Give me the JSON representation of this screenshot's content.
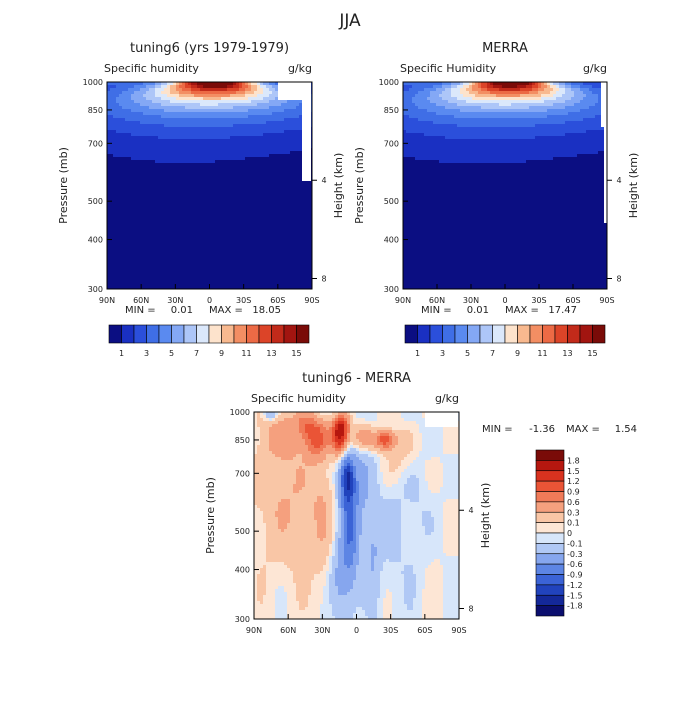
{
  "figure": {
    "title": "JJA"
  },
  "chart_data": [
    {
      "type": "heatmap",
      "subtype": "filled-contour",
      "title": "tuning6 (yrs 1979-1979)",
      "variable": "Specific humidity",
      "units": "g/kg",
      "xlabel": "",
      "ylabel": "Pressure (mb)",
      "y2label": "Height (km)",
      "x_ticks": [
        "90N",
        "60N",
        "30N",
        "0",
        "30S",
        "60S",
        "90S"
      ],
      "y_ticks": [
        "300",
        "400",
        "500",
        "700",
        "850",
        "1000"
      ],
      "y2_ticks": [
        "8",
        "4"
      ],
      "xlim": [
        90,
        -90
      ],
      "ylim": [
        1000,
        300
      ],
      "y_scale": "log",
      "min_label": "MIN =",
      "min": "0.01",
      "max_label": "MAX =",
      "max": "18.05",
      "colorbar_orientation": "horizontal",
      "colorbar_labels": [
        "1",
        "3",
        "5",
        "7",
        "9",
        "11",
        "13",
        "15"
      ],
      "colorbar_colors": [
        "#0b0e82",
        "#1a30c2",
        "#2b4fdb",
        "#3f6ee6",
        "#5a8af0",
        "#84a8f5",
        "#adc6f8",
        "#dbe8fb",
        "#fde3cc",
        "#f8b98f",
        "#f38e63",
        "#ec6a45",
        "#dc4428",
        "#c22a1a",
        "#a21510",
        "#7a0b08"
      ],
      "shape": {
        "peak_lat": -5,
        "peak_value": 18.05,
        "lat_width": 30,
        "lat_spread_per_p": 0.55,
        "p_scale": 115,
        "high_north": 92,
        "terrain": [
          {
            "lat_from": -61,
            "lat_to": -90,
            "p": 908
          },
          {
            "lat_from": -80,
            "lat_to": -90,
            "p": 560
          }
        ]
      }
    },
    {
      "type": "heatmap",
      "subtype": "filled-contour",
      "title": "MERRA",
      "variable": "Specific Humidity",
      "units": "g/kg",
      "xlabel": "",
      "ylabel": "Pressure (mb)",
      "y2label": "Height (km)",
      "x_ticks": [
        "90N",
        "60N",
        "30N",
        "0",
        "30S",
        "60S",
        "90S"
      ],
      "y_ticks": [
        "300",
        "400",
        "500",
        "700",
        "850",
        "1000"
      ],
      "y2_ticks": [
        "8",
        "4"
      ],
      "xlim": [
        90,
        -90
      ],
      "ylim": [
        1000,
        300
      ],
      "y_scale": "log",
      "min_label": "MIN =",
      "min": "0.01",
      "max_label": "MAX =",
      "max": "17.47",
      "colorbar_orientation": "horizontal",
      "colorbar_labels": [
        "1",
        "3",
        "5",
        "7",
        "9",
        "11",
        "13",
        "15"
      ],
      "colorbar_colors": [
        "#0b0e82",
        "#1a30c2",
        "#2b4fdb",
        "#3f6ee6",
        "#5a8af0",
        "#84a8f5",
        "#adc6f8",
        "#dbe8fb",
        "#fde3cc",
        "#f8b98f",
        "#f38e63",
        "#ec6a45",
        "#dc4428",
        "#c22a1a",
        "#a21510",
        "#7a0b08"
      ],
      "shape": {
        "peak_lat": -5,
        "peak_value": 17.47,
        "lat_width": 30,
        "lat_spread_per_p": 0.55,
        "p_scale": 118,
        "high_north": 95,
        "terrain": [
          {
            "lat_from": -84,
            "lat_to": -90,
            "p": 770
          },
          {
            "lat_from": -88,
            "lat_to": -90,
            "p": 440
          }
        ]
      }
    },
    {
      "type": "heatmap",
      "subtype": "filled-contour-difference",
      "title": "tuning6 - MERRA",
      "variable": "Specific humidity",
      "units": "g/kg",
      "xlabel": "",
      "ylabel": "Pressure (mb)",
      "y2label": "Height (km)",
      "x_ticks": [
        "90N",
        "60N",
        "30N",
        "0",
        "30S",
        "60S",
        "90S"
      ],
      "y_ticks": [
        "300",
        "400",
        "500",
        "700",
        "850",
        "1000"
      ],
      "y2_ticks": [
        "8",
        "4"
      ],
      "xlim": [
        90,
        -90
      ],
      "ylim": [
        1000,
        300
      ],
      "y_scale": "log",
      "min_label": "MIN =",
      "min": "-1.36",
      "max_label": "MAX =",
      "max": "1.54",
      "colorbar_orientation": "vertical",
      "colorbar_labels": [
        "1.8",
        "1.5",
        "1.2",
        "0.9",
        "0.6",
        "0.3",
        "0.1",
        "0",
        "-0.1",
        "-0.3",
        "-0.6",
        "-0.9",
        "-1.2",
        "-1.5",
        "-1.8"
      ],
      "colorbar_colors": [
        "#7a0b08",
        "#b5170f",
        "#d8321f",
        "#ea5436",
        "#f07a58",
        "#f5a07e",
        "#f9c6a6",
        "#fde6d5",
        "#d7e6fa",
        "#b0c8f5",
        "#86a6ee",
        "#5d85e4",
        "#3b63d6",
        "#2143bd",
        "#142899",
        "#0b0e6e"
      ],
      "bands": [
        0.1,
        0.3,
        0.6,
        0.9,
        1.2,
        1.5,
        1.8
      ],
      "features": [
        {
          "lat": 35,
          "p": 860,
          "amp": 1.0,
          "wl": 10,
          "wp": 90
        },
        {
          "lat": 15,
          "p": 860,
          "amp": 1.5,
          "wl": 7,
          "wp": 75
        },
        {
          "lat": 13,
          "p": 930,
          "amp": 1.0,
          "wl": 7,
          "wp": 55
        },
        {
          "lat": -25,
          "p": 850,
          "amp": 1.1,
          "wl": 9,
          "wp": 45
        },
        {
          "lat": -5,
          "p": 860,
          "amp": 0.5,
          "wl": 10,
          "wp": 60
        },
        {
          "lat": 65,
          "p": 880,
          "amp": 0.45,
          "wl": 20,
          "wp": 120
        },
        {
          "lat": 45,
          "p": 930,
          "amp": 0.55,
          "wl": 9,
          "wp": 70
        },
        {
          "lat": 60,
          "p": 600,
          "amp": 0.3,
          "wl": 30,
          "wp": 200
        },
        {
          "lat": 30,
          "p": 560,
          "amp": 0.22,
          "wl": 9,
          "wp": 200
        },
        {
          "lat": -40,
          "p": 780,
          "amp": 0.2,
          "wl": 15,
          "wp": 120
        },
        {
          "lat": 8,
          "p": 680,
          "amp": -1.3,
          "wl": 6,
          "wp": 85
        },
        {
          "lat": 6,
          "p": 500,
          "amp": -0.75,
          "wl": 7,
          "wp": 140
        },
        {
          "lat": 0,
          "p": 640,
          "amp": -0.4,
          "wl": 15,
          "wp": 200
        },
        {
          "lat": 15,
          "p": 380,
          "amp": -0.35,
          "wl": 8,
          "wp": 80
        },
        {
          "lat": -30,
          "p": 500,
          "amp": -0.12,
          "wl": 12,
          "wp": 200
        },
        {
          "lat": -15,
          "p": 440,
          "amp": -0.25,
          "wl": 6,
          "wp": 120
        },
        {
          "lat": -50,
          "p": 620,
          "amp": -0.12,
          "wl": 15,
          "wp": 250
        },
        {
          "lat": 75,
          "p": 985,
          "amp": -0.4,
          "wl": 6,
          "wp": 40
        }
      ],
      "terrain": [
        {
          "lat_from": -60,
          "lat_to": -90,
          "p": 915
        }
      ]
    }
  ]
}
